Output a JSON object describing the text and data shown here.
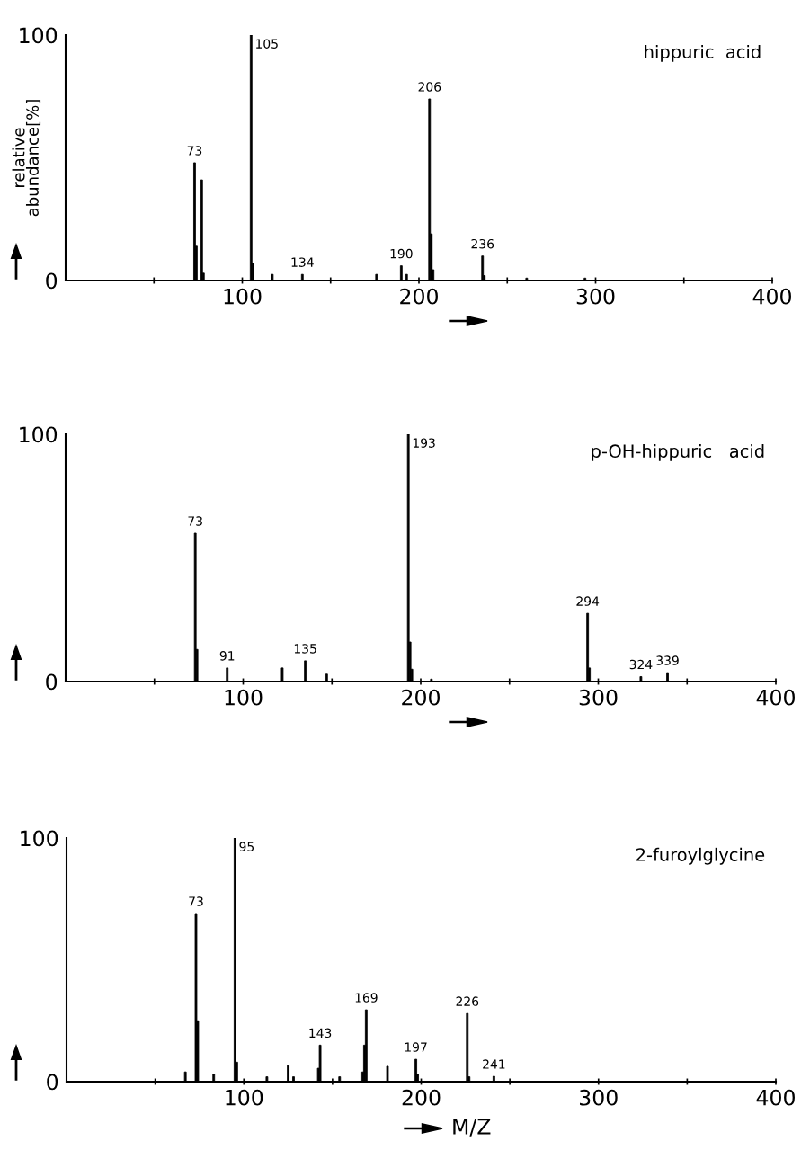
{
  "chart_data": [
    {
      "type": "bar",
      "title": "hippuric  acid",
      "ylabel": "relative\nabundance[%]",
      "color": "#000000",
      "x": [
        73,
        74,
        77,
        78,
        105,
        106,
        117,
        134,
        176,
        190,
        193,
        206,
        207,
        208,
        236,
        237,
        261,
        294
      ],
      "values": [
        48,
        14,
        41,
        3,
        100,
        7,
        2.5,
        2.5,
        2.5,
        6,
        2.5,
        74,
        19,
        4.4,
        10,
        2,
        1,
        1
      ],
      "annotations": [
        {
          "text": "73",
          "x": 73,
          "y": 48
        },
        {
          "text": "105",
          "x": 105,
          "y": 100
        },
        {
          "text": "134",
          "x": 134,
          "y": 2.5
        },
        {
          "text": "190",
          "x": 190,
          "y": 6
        },
        {
          "text": "206",
          "x": 206,
          "y": 74
        },
        {
          "text": "236",
          "x": 236,
          "y": 10
        }
      ],
      "xlim": [
        0,
        400
      ],
      "xticks": [
        {
          "value": 50,
          "label": null
        },
        100,
        {
          "value": 150,
          "label": null
        },
        200,
        {
          "value": 250,
          "label": null
        },
        300,
        {
          "value": 350,
          "label": null
        },
        400
      ],
      "ylim": [
        0,
        100
      ],
      "yticks": [
        0,
        100
      ]
    },
    {
      "type": "bar",
      "title": "p-OH-hippuric   acid",
      "color": "#000000",
      "x": [
        73,
        74,
        91,
        122,
        135,
        147,
        193,
        194,
        195,
        206,
        294,
        295,
        324,
        339
      ],
      "values": [
        60,
        13,
        5.5,
        5.5,
        8.4,
        3,
        100,
        16,
        5,
        1,
        27.6,
        5.5,
        2,
        3.6
      ],
      "annotations": [
        {
          "text": "73",
          "x": 73,
          "y": 60
        },
        {
          "text": "91",
          "x": 91,
          "y": 5.5
        },
        {
          "text": "135",
          "x": 135,
          "y": 8.4
        },
        {
          "text": "193",
          "x": 193,
          "y": 100
        },
        {
          "text": "294",
          "x": 294,
          "y": 27.6
        },
        {
          "text": "324",
          "x": 324,
          "y": 2
        },
        {
          "text": "339",
          "x": 339,
          "y": 3.6
        }
      ],
      "xlim": [
        0,
        400
      ],
      "xticks": [
        {
          "value": 50,
          "label": null
        },
        100,
        {
          "value": 150,
          "label": null
        },
        200,
        {
          "value": 250,
          "label": null
        },
        300,
        {
          "value": 350,
          "label": null
        },
        400
      ],
      "ylim": [
        0,
        100
      ],
      "yticks": [
        0,
        100
      ]
    },
    {
      "type": "bar",
      "title": "2-furoylglycine",
      "xlabel": "M/Z",
      "color": "#000000",
      "x": [
        67,
        73,
        74,
        83,
        95,
        96,
        113,
        125,
        128,
        142,
        143,
        154,
        167,
        168,
        169,
        181,
        197,
        198,
        226,
        227,
        241
      ],
      "values": [
        4,
        69,
        25,
        3,
        100,
        8,
        2,
        6.6,
        2,
        5.5,
        15,
        2,
        4,
        15,
        29.5,
        6.3,
        9.2,
        3,
        28,
        2,
        2.2
      ],
      "annotations": [
        {
          "text": "73",
          "x": 73,
          "y": 69
        },
        {
          "text": "95",
          "x": 95,
          "y": 100
        },
        {
          "text": "143",
          "x": 143,
          "y": 15
        },
        {
          "text": "169",
          "x": 169,
          "y": 29.5
        },
        {
          "text": "197",
          "x": 197,
          "y": 9.2
        },
        {
          "text": "226",
          "x": 226,
          "y": 28
        },
        {
          "text": "241",
          "x": 241,
          "y": 2.2
        }
      ],
      "xlim": [
        0,
        400
      ],
      "xticks": [
        {
          "value": 50,
          "label": null
        },
        100,
        {
          "value": 150,
          "label": null
        },
        200,
        {
          "value": 250,
          "label": null
        },
        300,
        {
          "value": 350,
          "label": null
        },
        400
      ],
      "ylim": [
        0,
        100
      ],
      "yticks": [
        0,
        100
      ]
    }
  ]
}
